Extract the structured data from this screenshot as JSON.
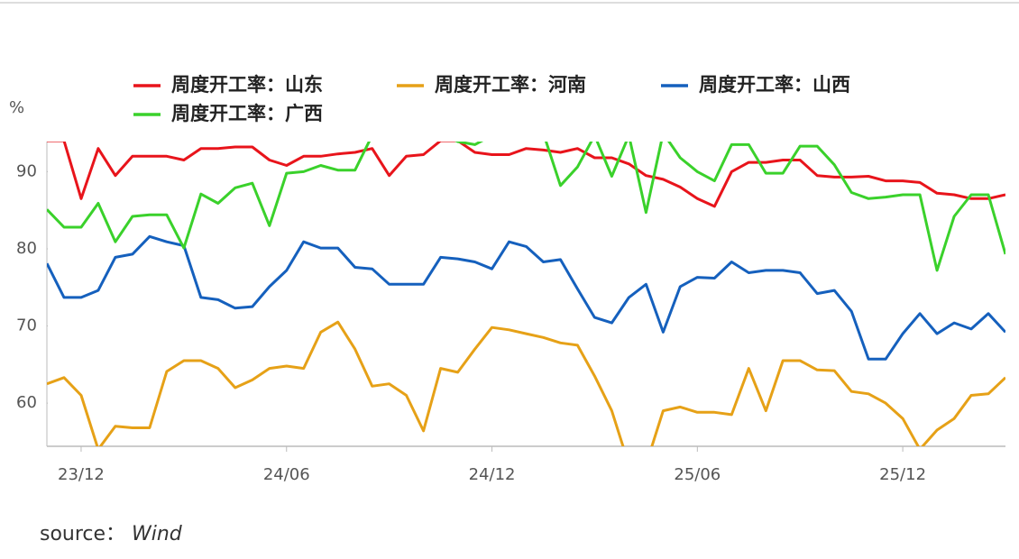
{
  "chart_data": {
    "type": "line",
    "y_label": "%",
    "source_label": "source：",
    "source": "Wind",
    "categories": [
      null,
      null,
      "23/12",
      null,
      null,
      null,
      null,
      null,
      null,
      null,
      null,
      null,
      null,
      null,
      "24/06",
      null,
      null,
      null,
      null,
      null,
      null,
      null,
      null,
      null,
      null,
      null,
      "24/12",
      null,
      null,
      null,
      null,
      null,
      null,
      null,
      null,
      null,
      null,
      null,
      "25/06",
      null,
      null,
      null,
      null,
      null,
      null,
      null,
      null,
      null,
      null,
      null,
      "25/12",
      null,
      null,
      null,
      null,
      null,
      null
    ],
    "series": [
      {
        "name": "周度开工率：山东",
        "color": "#e8141b",
        "values": [
          94,
          94,
          86.5,
          93,
          89.5,
          92,
          92,
          92,
          91.5,
          93,
          93,
          93.2,
          93.2,
          91.5,
          90.8,
          92,
          92,
          92.3,
          92.5,
          93,
          89.5,
          92,
          92.2,
          94,
          94,
          92.5,
          92.2,
          92.2,
          93,
          92.8,
          92.5,
          93,
          91.8,
          91.8,
          91,
          89.5,
          89,
          88,
          86.5,
          85.5,
          90,
          91.2,
          91.2,
          91.5,
          91.5,
          89.5,
          89.3,
          89.3,
          89.4,
          88.8,
          88.8,
          88.6,
          87.2,
          87,
          86.5,
          86.5,
          87
        ]
      },
      {
        "name": "周度开工率：河南",
        "color": "#e6a117",
        "values": [
          62.5,
          63.3,
          61,
          54,
          57,
          56.8,
          56.8,
          64.1,
          65.5,
          65.5,
          64.5,
          62,
          63,
          64.5,
          64.8,
          64.5,
          69.2,
          70.5,
          67,
          62.2,
          62.5,
          61,
          56.4,
          64.5,
          64,
          67,
          69.8,
          69.5,
          69,
          68.5,
          67.8,
          67.5,
          63.5,
          59,
          52,
          52,
          59,
          59.5,
          58.8,
          58.8,
          58.5,
          64.5,
          59,
          65.5,
          65.5,
          64.3,
          64.2,
          61.5,
          61.2,
          60,
          58,
          54,
          56.5,
          58,
          61,
          61.2,
          63.3
        ]
      },
      {
        "name": "周度开工率：山西",
        "color": "#1560bd",
        "values": [
          78.1,
          73.7,
          73.7,
          74.6,
          78.9,
          79.3,
          81.6,
          80.9,
          80.4,
          73.7,
          73.4,
          72.3,
          72.5,
          75.1,
          77.2,
          80.9,
          80.1,
          80.1,
          77.6,
          77.4,
          75.4,
          75.4,
          75.4,
          78.9,
          78.7,
          78.3,
          77.4,
          80.9,
          80.3,
          78.3,
          78.6,
          74.8,
          71.1,
          70.4,
          73.7,
          75.4,
          69.2,
          75.1,
          76.3,
          76.2,
          78.3,
          76.9,
          77.2,
          77.2,
          76.9,
          74.2,
          74.6,
          71.9,
          65.7,
          65.7,
          69,
          71.6,
          69,
          70.4,
          69.6,
          71.6,
          69.2
        ]
      },
      {
        "name": "周度开工率：广西",
        "color": "#3ad12b",
        "values": [
          85.1,
          82.8,
          82.8,
          85.9,
          80.9,
          84.2,
          84.4,
          84.4,
          80.1,
          87.1,
          85.9,
          87.9,
          88.5,
          83,
          89.8,
          90,
          90.8,
          90.2,
          90.2,
          94.7,
          95,
          95,
          95,
          95,
          93.9,
          93.5,
          94.7,
          95,
          95,
          95,
          88.2,
          90.6,
          94.7,
          89.4,
          94.7,
          84.7,
          95,
          91.8,
          90,
          88.8,
          93.5,
          93.5,
          89.8,
          89.8,
          93.3,
          93.3,
          90.9,
          87.3,
          86.5,
          86.7,
          87,
          87,
          77.2,
          84.2,
          87,
          87,
          79.3
        ]
      }
    ],
    "ylim": [
      54.4,
      93.9
    ],
    "yticks": [
      60,
      70,
      80,
      90
    ],
    "grid": false
  }
}
